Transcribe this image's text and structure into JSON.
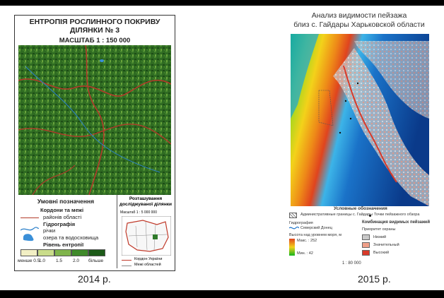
{
  "left_map": {
    "title_line1": "ЕНТРОПІЯ РОСЛИННОГО ПОКРИВУ",
    "title_line2": "ДІЛЯНКИ № 3",
    "scale": "МАСШТАБ 1 : 150 000",
    "legend": {
      "title": "Умовні позначення",
      "boundaries_header": "Кордони та межі",
      "district_label": "районів області",
      "hydro_header": "Гідрографія",
      "rivers_label": "річки",
      "lakes_label": "озера та водосховища",
      "entropy_header": "Рівень ентропії",
      "entropy_ticks": [
        "менше 0.5",
        "1.0",
        "1.5",
        "2.0",
        "більше"
      ],
      "entropy_colors": [
        "#f2efc4",
        "#c9dc8a",
        "#7fb44b",
        "#3f8a2a",
        "#1c5a18"
      ]
    },
    "inset": {
      "title": "Розташування досліджуваної ділянки",
      "scale": "Масштаб 1 : 5 000 000",
      "border_label": "Кордон України",
      "oblast_label": "Межі областей"
    }
  },
  "right_map": {
    "title_line1": "Анализ видимости пейзажа",
    "title_line2": "близ с. Гайдары Харьковской области",
    "legend": {
      "title": "Условные обозначения",
      "admin_label": "Административные границы с. Гайдары",
      "points_label": "Точки пейзажного обзора",
      "hydro_label": "Гидрография",
      "rivers_label": "Северский Донец",
      "height_label": "Высота над уровнем моря, м",
      "height_max": "Макс. : 252",
      "height_min": "Мин. : 42",
      "combo_title": "Комбинация видимых пейзажей",
      "priority_label": "Приоритет охраны",
      "low": "Низкий",
      "significant": "Значительный",
      "high": "Высокий",
      "low_color": "#c9c9c9",
      "significant_color": "#f0a089",
      "high_color": "#d83a2a"
    },
    "scale": "1 : 80 000"
  },
  "captions": {
    "left": "2014 р.",
    "right": "2015 р."
  }
}
